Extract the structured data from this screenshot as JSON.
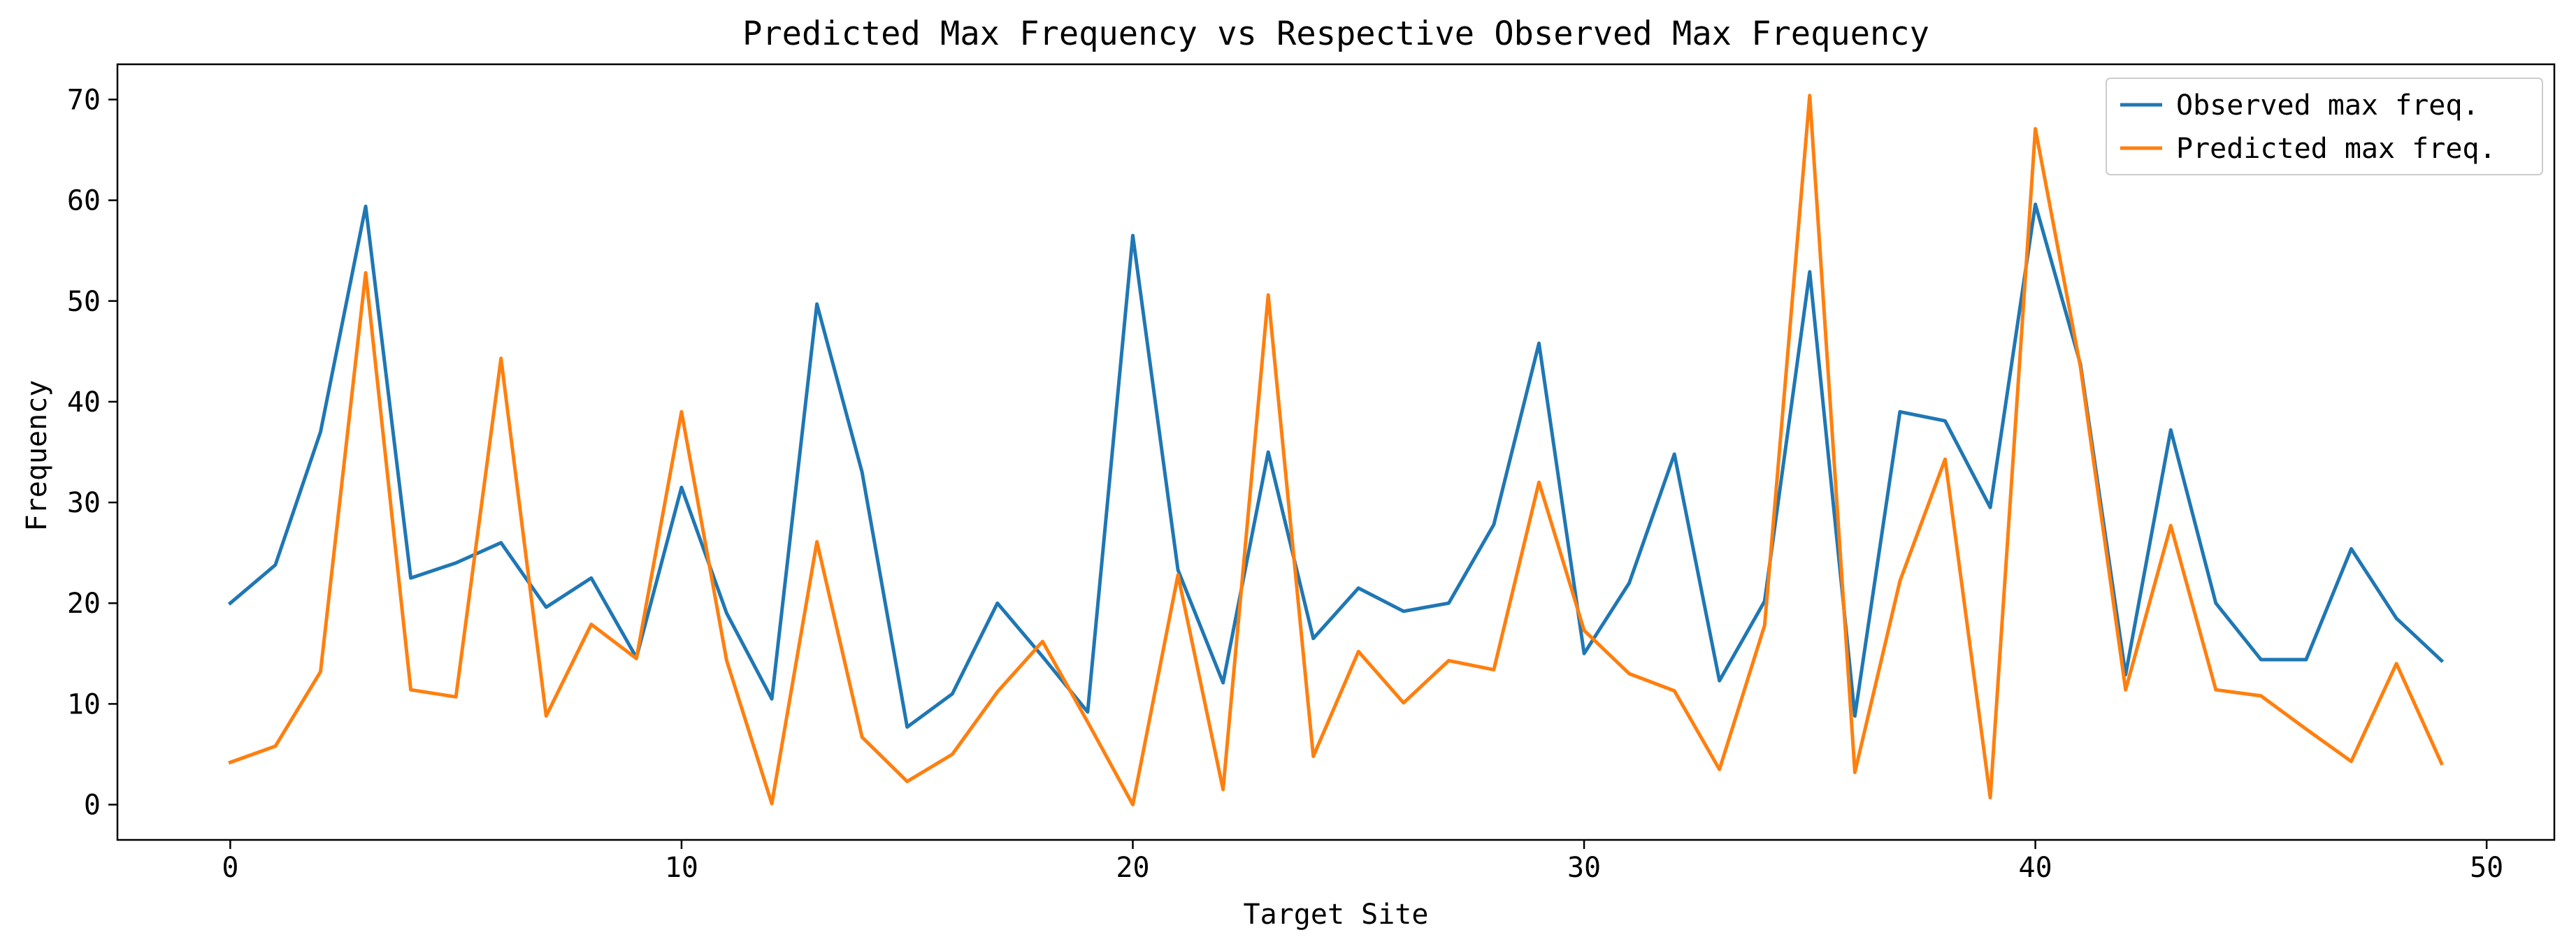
{
  "chart_data": {
    "type": "line",
    "title": "Predicted Max Frequency vs Respective Observed Max Frequency",
    "xlabel": "Target Site",
    "ylabel": "Frequency",
    "xlim": [
      -2.5,
      51.5
    ],
    "ylim": [
      -3.5,
      73.5
    ],
    "xticks": [
      0,
      10,
      20,
      30,
      40,
      50
    ],
    "yticks": [
      0,
      10,
      20,
      30,
      40,
      50,
      60,
      70
    ],
    "grid": false,
    "legend_position": "top-right",
    "x": [
      0,
      1,
      2,
      3,
      4,
      5,
      6,
      7,
      8,
      9,
      10,
      11,
      12,
      13,
      14,
      15,
      16,
      17,
      18,
      19,
      20,
      21,
      22,
      23,
      24,
      25,
      26,
      27,
      28,
      29,
      30,
      31,
      32,
      33,
      34,
      35,
      36,
      37,
      38,
      39,
      40,
      41,
      42,
      43,
      44,
      45,
      46,
      47,
      48,
      49
    ],
    "series": [
      {
        "name": "Observed max freq.",
        "color": "#1f77b4",
        "values": [
          20,
          23.8,
          37,
          59.4,
          22.5,
          24,
          26,
          19.6,
          22.5,
          14.6,
          31.5,
          19,
          10.5,
          49.7,
          33,
          7.7,
          11,
          20,
          14.7,
          9.2,
          56.5,
          23.3,
          12.1,
          35,
          16.5,
          21.5,
          19.2,
          20,
          27.8,
          45.8,
          15,
          22,
          34.8,
          12.3,
          20.2,
          52.9,
          8.8,
          39,
          38.1,
          29.5,
          59.6,
          43.7,
          12.9,
          37.2,
          20,
          14.4,
          14.4,
          25.4,
          18.5,
          14.3
        ]
      },
      {
        "name": "Predicted max freq.",
        "color": "#ff7f0e",
        "values": [
          4.2,
          5.8,
          13.2,
          52.8,
          11.4,
          10.7,
          44.3,
          8.8,
          17.9,
          14.5,
          39,
          14.3,
          0.1,
          26.1,
          6.7,
          2.3,
          5,
          11.2,
          16.2,
          8.2,
          0,
          22.8,
          1.5,
          50.6,
          4.8,
          15.2,
          10.1,
          14.3,
          13.4,
          32,
          17.3,
          13,
          11.3,
          3.5,
          17.8,
          70.4,
          3.2,
          22.2,
          34.3,
          0.7,
          67.1,
          43.4,
          11.4,
          27.7,
          11.4,
          10.8,
          7.5,
          4.3,
          14,
          4.1
        ]
      }
    ]
  }
}
